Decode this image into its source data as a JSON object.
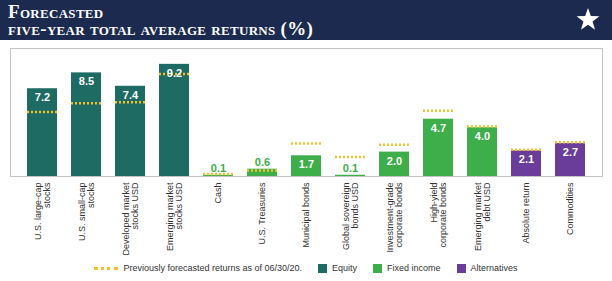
{
  "chart_data": {
    "type": "bar",
    "title": "Forecasted five-year total average returns (%)",
    "categories": [
      "U.S. large-cap stocks",
      "U.S. small-cap stocks",
      "Developed market stocks USD",
      "Emerging market stocks USD",
      "Cash",
      "U.S. Treasuries",
      "Municipal bonds",
      "Global sovereign bonds USD",
      "Investment-grade corporate bonds",
      "High-yield corporate bonds",
      "Emerging market debt USD",
      "Absolute return",
      "Commodities"
    ],
    "series": [
      {
        "name": "Equity",
        "color": "#1d6b63",
        "values": [
          7.2,
          8.5,
          7.4,
          9.2,
          null,
          null,
          null,
          null,
          null,
          null,
          null,
          null,
          null
        ],
        "value_labels": [
          "7.2",
          "8.5",
          "7.4",
          "9.2",
          null,
          null,
          null,
          null,
          null,
          null,
          null,
          null,
          null
        ]
      },
      {
        "name": "Fixed income",
        "color": "#3dae49",
        "values": [
          null,
          null,
          null,
          null,
          0.1,
          0.6,
          1.7,
          0.1,
          2.0,
          4.7,
          4.0,
          null,
          null
        ],
        "value_labels": [
          null,
          null,
          null,
          null,
          "0.1",
          "0.6",
          "1.7",
          "0.1",
          "2.0",
          "4.7",
          "4.0",
          null,
          null
        ]
      },
      {
        "name": "Alternatives",
        "color": "#6a3d9a",
        "values": [
          null,
          null,
          null,
          null,
          null,
          null,
          null,
          null,
          null,
          null,
          null,
          2.1,
          2.7
        ],
        "value_labels": [
          null,
          null,
          null,
          null,
          null,
          null,
          null,
          null,
          null,
          null,
          null,
          "2.1",
          "2.7"
        ]
      },
      {
        "name": "Previously forecasted returns as of 06/30/20.",
        "type": "tick",
        "line_style": "dotted",
        "color": "#f2c12e",
        "values": [
          5.3,
          6.0,
          6.1,
          8.4,
          0.2,
          0.5,
          2.7,
          1.6,
          2.6,
          5.4,
          4.1,
          2.2,
          2.8
        ]
      }
    ],
    "ylim": [
      0,
      10.5
    ],
    "data_labels": true,
    "tick_labels": "x",
    "grid": false,
    "legend": "bottom"
  }
}
